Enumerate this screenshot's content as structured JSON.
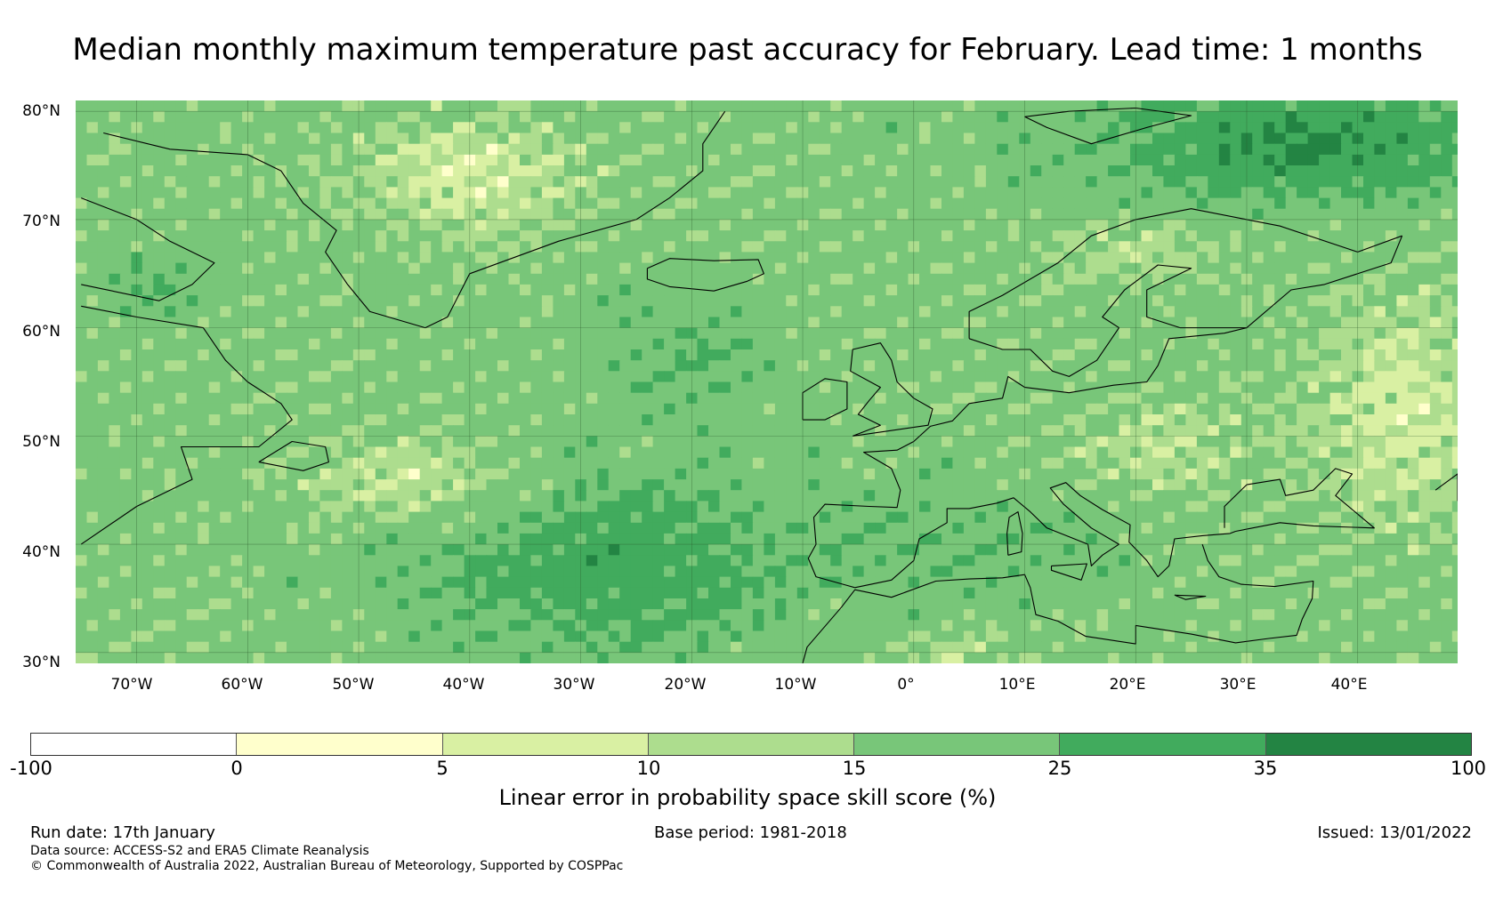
{
  "title": "Median monthly maximum temperature past accuracy for February. Lead time: 1 months",
  "map": {
    "lat_labels": [
      "80°N",
      "70°N",
      "60°N",
      "50°N",
      "40°N",
      "30°N"
    ],
    "lon_labels": [
      "70°W",
      "60°W",
      "50°W",
      "40°W",
      "30°W",
      "20°W",
      "10°W",
      "0°",
      "10°E",
      "20°E",
      "30°E",
      "40°E"
    ],
    "lat_range": [
      29,
      81
    ],
    "lon_range": [
      -75.5,
      49
    ]
  },
  "colorbar": {
    "ticks": [
      "-100",
      "0",
      "5",
      "10",
      "15",
      "25",
      "35",
      "100"
    ],
    "colors": [
      "#ffffff",
      "#ffffcc",
      "#d9f0a3",
      "#addd8e",
      "#78c679",
      "#41ab5d",
      "#238443"
    ],
    "label": "Linear error in probability space skill score (%)"
  },
  "footer": {
    "run_date": "Run date: 17th January",
    "base_period": "Base period: 1981-2018",
    "issued": "Issued: 13/01/2022",
    "data_source": "Data source: ACCESS-S2 and ERA5 Climate Reanalysis",
    "copyright": "© Commonwealth of Australia 2022, Australian Bureau of Meteorology, Supported by COSPPac"
  }
}
